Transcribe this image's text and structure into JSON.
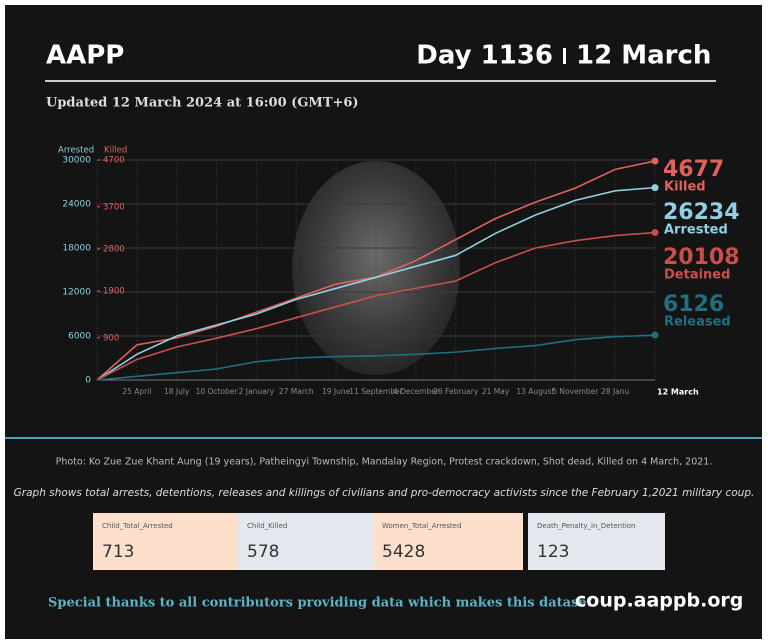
{
  "header": {
    "title": "AAPP",
    "day": "Day 1136",
    "date": "12 March",
    "updated": "Updated 12 March 2024 at 16:00 (GMT+6)"
  },
  "chart_data": {
    "type": "line",
    "y_label": "Arrested",
    "y2_label": "Killed",
    "categories": [
      null,
      "25 April",
      "18 July",
      "10 October",
      "2 January",
      "27 March",
      "19 June",
      "11 September",
      "4 December",
      "26 February",
      "21 May",
      "13 August",
      "5 November",
      "28 Janu",
      "12 March"
    ],
    "ylim": [
      0,
      30000
    ],
    "yticks": [
      0,
      6000,
      12000,
      18000,
      24000,
      30000
    ],
    "y2lim": [
      0,
      4700
    ],
    "y2ticks": [
      900,
      1900,
      2800,
      3700,
      4700
    ],
    "grid": true,
    "series": [
      {
        "name": "Killed",
        "color": "#e0625c",
        "axis": "y2",
        "values": [
          0,
          750,
          900,
          1150,
          1450,
          1750,
          2050,
          2200,
          2550,
          3000,
          3450,
          3800,
          4100,
          4500,
          4677
        ]
      },
      {
        "name": "Arrested",
        "color": "#8fd0e2",
        "values": [
          0,
          3500,
          6000,
          7500,
          9000,
          11000,
          12500,
          14000,
          15500,
          17000,
          20000,
          22500,
          24500,
          25800,
          26234
        ]
      },
      {
        "name": "Detained",
        "color": "#c84f4b",
        "values": [
          0,
          2800,
          4500,
          5700,
          7000,
          8500,
          10000,
          11500,
          12500,
          13500,
          16000,
          18000,
          19000,
          19700,
          20108
        ]
      },
      {
        "name": "Released",
        "color": "#1f6f82",
        "values": [
          0,
          500,
          1000,
          1500,
          2500,
          3000,
          3200,
          3300,
          3500,
          3800,
          4300,
          4700,
          5500,
          5900,
          6126
        ]
      }
    ]
  },
  "caption": "Photo: Ko Zue Zue Khant Aung (19 years), Patheingyi Township, Mandalay Region, Protest crackdown, Shot dead, Killed on 4 March, 2021.",
  "description": "Graph shows total arrests, detentions, releases and killings of civilians and pro-democracy activists since the February 1,2021 military coup.",
  "stats": [
    {
      "label": "Child_Total_Arrested",
      "value": "713"
    },
    {
      "label": "Child_Killed",
      "value": "578"
    },
    {
      "label": "Women_Total_Arrested",
      "value": "5428"
    },
    {
      "label": "Death_Penalty_in_Detention",
      "value": "123"
    }
  ],
  "footer": {
    "thanks": "Special thanks to all contributors providing data which makes this dataset.",
    "url": "coup.aappb.org"
  }
}
